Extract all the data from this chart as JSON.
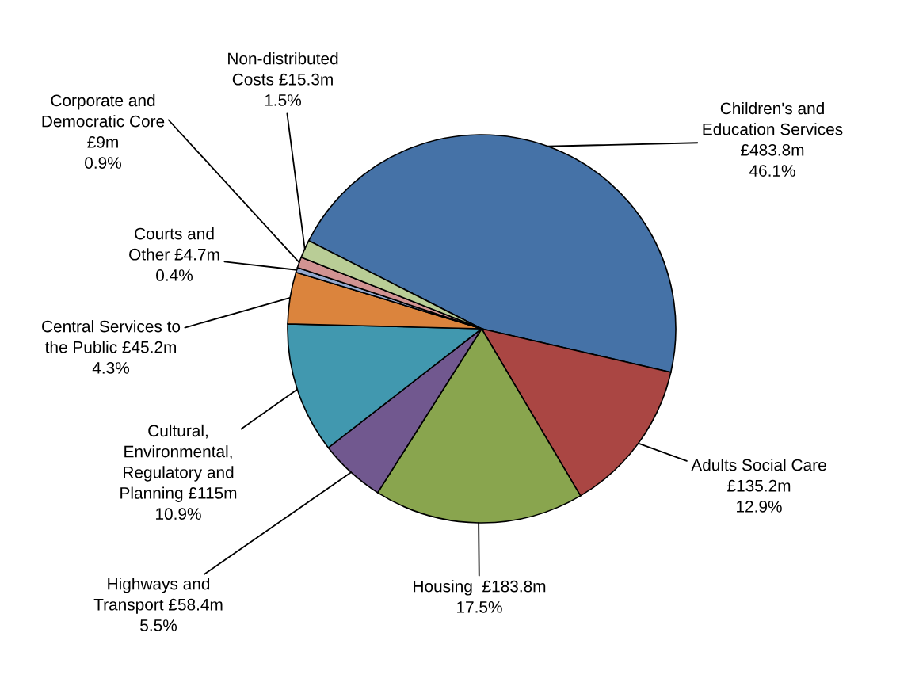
{
  "chart_data": {
    "type": "pie",
    "categories": [
      "Children's and\nEducation Services",
      "Adults Social Care",
      "Housing",
      "Highways and\nTransport",
      "Cultural,\nEnvironmental,\nRegulatory and\nPlanning",
      "Central Services to\nthe Public",
      "Courts and\nOther",
      "Corporate and\nDemocratic Core",
      "Non-distributed\nCosts"
    ],
    "values": [
      46.1,
      12.9,
      17.5,
      5.5,
      10.9,
      4.3,
      0.4,
      0.9,
      1.5
    ],
    "value_labels": [
      "£483.8m\n46.1%",
      "£135.2m\n12.9%",
      "£183.8m\n17.5%",
      "£58.4m\n5.5%",
      "£115m\n10.9%",
      "£45.2m\n4.3%",
      "£4.7m\n0.4%",
      "£9m\n0.9%",
      "£15.3m\n1.5%"
    ],
    "colors": [
      "#4572a7",
      "#aa4643",
      "#89a54e",
      "#71588f",
      "#4198af",
      "#db843d",
      "#93a9cf",
      "#d19392",
      "#b9cd96"
    ]
  }
}
